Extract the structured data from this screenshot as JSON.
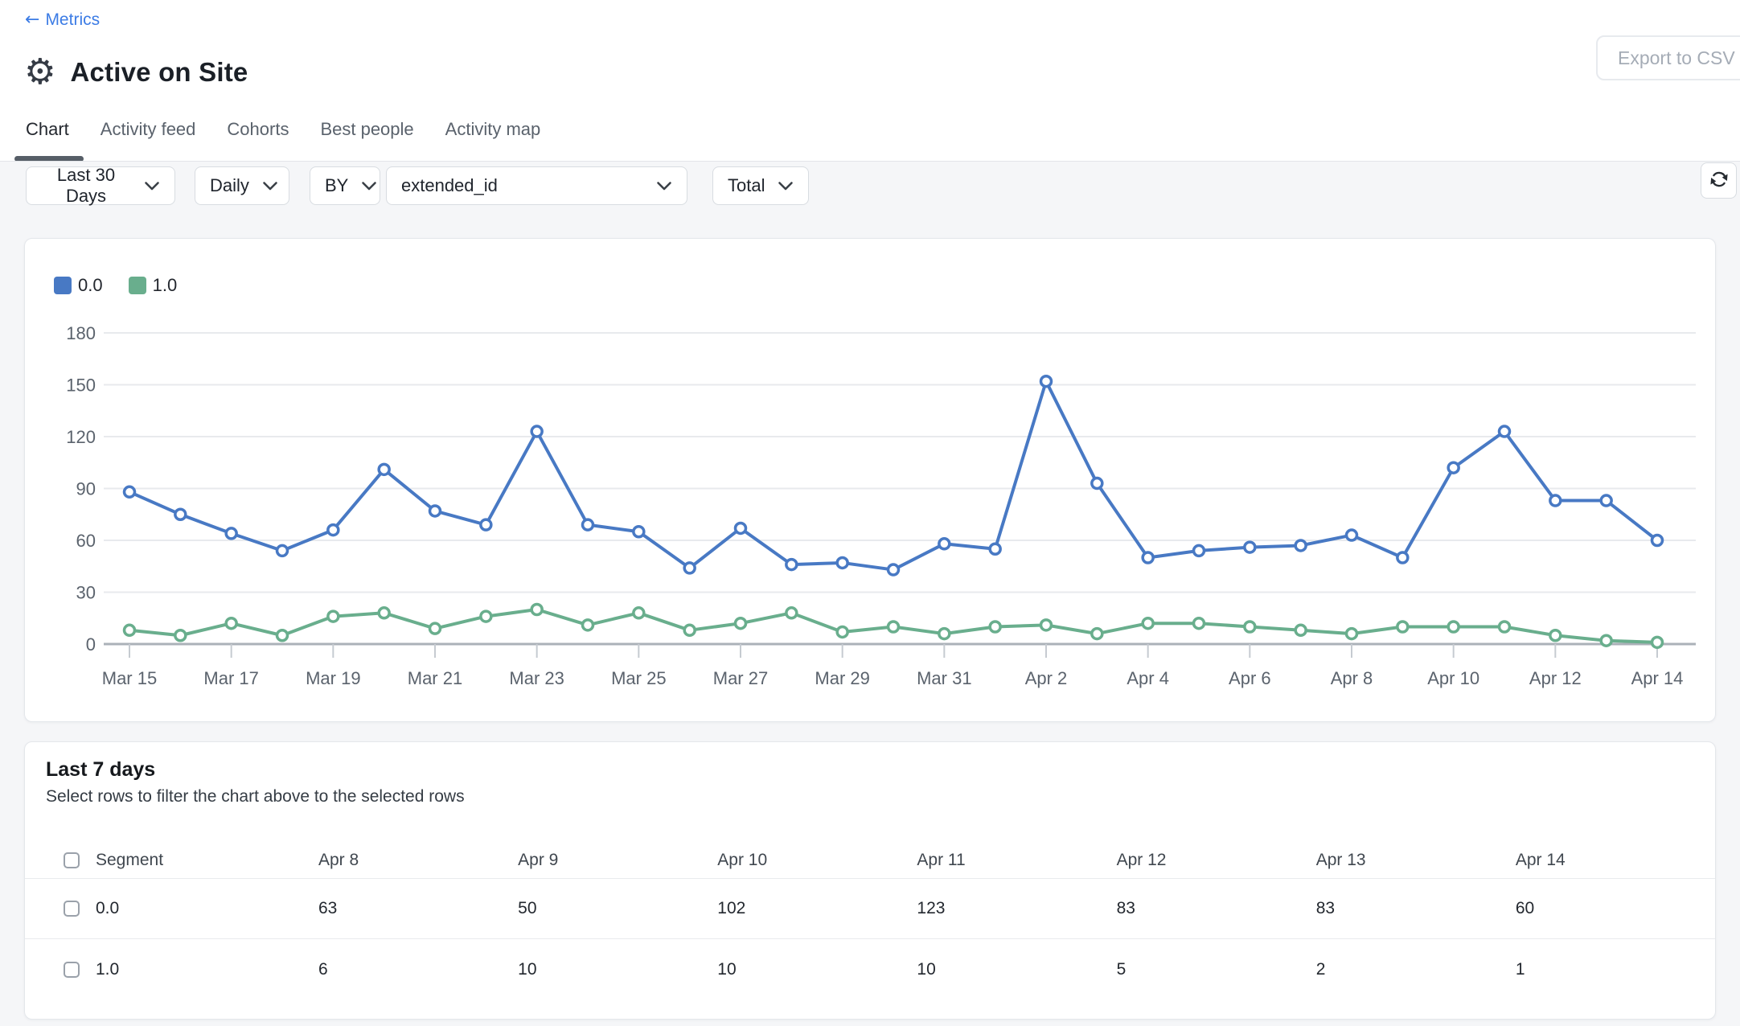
{
  "header": {
    "back_label": "Metrics",
    "title": "Active on Site",
    "export_label": "Export to CSV"
  },
  "icons": {
    "back_arrow": "←",
    "gear": "⚙"
  },
  "tabs": [
    {
      "label": "Chart",
      "active": true
    },
    {
      "label": "Activity feed",
      "active": false
    },
    {
      "label": "Cohorts",
      "active": false
    },
    {
      "label": "Best people",
      "active": false
    },
    {
      "label": "Activity map",
      "active": false
    }
  ],
  "filters": {
    "date_range": "Last 30 Days",
    "granularity": "Daily",
    "by": "BY",
    "property": "extended_id",
    "aggregation": "Total"
  },
  "chart_data": {
    "type": "line",
    "title": "",
    "x": [
      "Mar 15",
      "Mar 16",
      "Mar 17",
      "Mar 18",
      "Mar 19",
      "Mar 20",
      "Mar 21",
      "Mar 22",
      "Mar 23",
      "Mar 24",
      "Mar 25",
      "Mar 26",
      "Mar 27",
      "Mar 28",
      "Mar 29",
      "Mar 30",
      "Mar 31",
      "Apr 1",
      "Apr 2",
      "Apr 3",
      "Apr 4",
      "Apr 5",
      "Apr 6",
      "Apr 7",
      "Apr 8",
      "Apr 9",
      "Apr 10",
      "Apr 11",
      "Apr 12",
      "Apr 13",
      "Apr 14"
    ],
    "x_label_every": 2,
    "yticks": [
      0,
      30,
      60,
      90,
      120,
      150,
      180
    ],
    "ylim": [
      0,
      180
    ],
    "grid": true,
    "legend_position": "top-left",
    "series": [
      {
        "name": "0.0",
        "color": "#4879C4",
        "values": [
          88,
          75,
          64,
          54,
          66,
          101,
          77,
          69,
          123,
          69,
          65,
          44,
          67,
          46,
          47,
          43,
          58,
          55,
          152,
          93,
          50,
          54,
          56,
          57,
          63,
          50,
          102,
          123,
          83,
          83,
          60
        ]
      },
      {
        "name": "1.0",
        "color": "#69AE8D",
        "values": [
          8,
          5,
          12,
          5,
          16,
          18,
          9,
          16,
          20,
          11,
          18,
          8,
          12,
          18,
          7,
          10,
          6,
          10,
          11,
          6,
          12,
          12,
          10,
          8,
          6,
          10,
          10,
          10,
          5,
          2,
          1
        ]
      }
    ]
  },
  "table": {
    "title": "Last 7 days",
    "subtitle": "Select rows to filter the chart above to the selected rows",
    "columns": [
      "Segment",
      "Apr 8",
      "Apr 9",
      "Apr 10",
      "Apr 11",
      "Apr 12",
      "Apr 13",
      "Apr 14"
    ],
    "rows": [
      {
        "segment": "0.0",
        "values": [
          63,
          50,
          102,
          123,
          83,
          83,
          60
        ]
      },
      {
        "segment": "1.0",
        "values": [
          6,
          10,
          10,
          10,
          5,
          2,
          1
        ]
      }
    ]
  }
}
